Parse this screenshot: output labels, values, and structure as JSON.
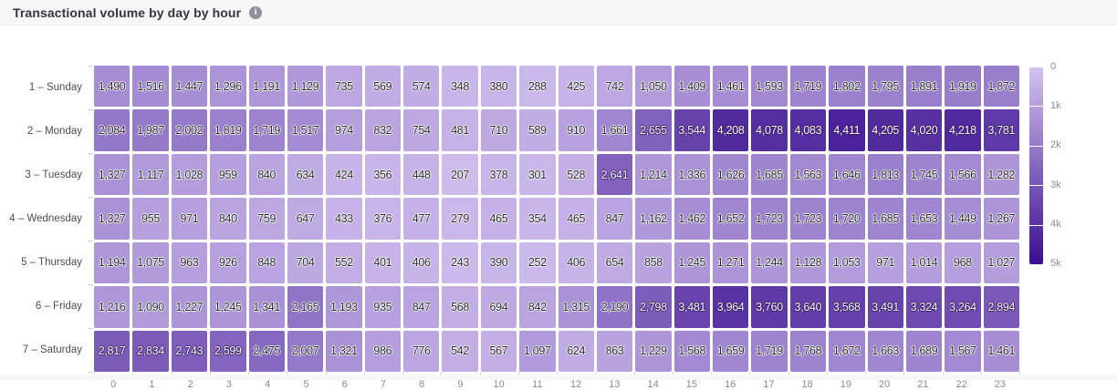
{
  "header": {
    "title": "Transactional volume by day by hour"
  },
  "chart_data": {
    "type": "heatmap",
    "title": "Transactional volume by day by hour",
    "categories_x": [
      "0",
      "1",
      "2",
      "3",
      "4",
      "5",
      "6",
      "7",
      "8",
      "9",
      "10",
      "11",
      "12",
      "13",
      "14",
      "15",
      "16",
      "17",
      "18",
      "19",
      "20",
      "21",
      "22",
      "23"
    ],
    "series": [
      {
        "name": "1 – Sunday",
        "values": [
          1490,
          1516,
          1447,
          1296,
          1191,
          1129,
          735,
          569,
          574,
          348,
          380,
          288,
          425,
          742,
          1050,
          1409,
          1461,
          1593,
          1719,
          1802,
          1795,
          1891,
          1919,
          1872
        ]
      },
      {
        "name": "2 – Monday",
        "values": [
          2084,
          1987,
          2002,
          1819,
          1719,
          1517,
          974,
          832,
          754,
          481,
          710,
          589,
          910,
          1661,
          2655,
          3544,
          4208,
          4078,
          4083,
          4411,
          4205,
          4020,
          4218,
          3781
        ]
      },
      {
        "name": "3 – Tuesday",
        "values": [
          1327,
          1117,
          1028,
          959,
          840,
          634,
          424,
          356,
          448,
          207,
          378,
          301,
          528,
          2641,
          1214,
          1336,
          1626,
          1685,
          1563,
          1646,
          1813,
          1745,
          1566,
          1282
        ]
      },
      {
        "name": "4 – Wednesday",
        "values": [
          1327,
          955,
          971,
          840,
          759,
          647,
          433,
          376,
          477,
          279,
          465,
          354,
          465,
          847,
          1162,
          1462,
          1652,
          1723,
          1723,
          1720,
          1685,
          1653,
          1449,
          1267
        ]
      },
      {
        "name": "5 – Thursday",
        "values": [
          1194,
          1075,
          963,
          926,
          848,
          704,
          552,
          401,
          406,
          243,
          390,
          252,
          406,
          654,
          858,
          1245,
          1271,
          1244,
          1128,
          1053,
          971,
          1014,
          968,
          1027
        ]
      },
      {
        "name": "6 – Friday",
        "values": [
          1216,
          1090,
          1227,
          1245,
          1341,
          2165,
          1193,
          935,
          847,
          568,
          694,
          842,
          1315,
          2190,
          2798,
          3481,
          3964,
          3760,
          3640,
          3568,
          3491,
          3324,
          3264,
          2894
        ]
      },
      {
        "name": "7 – Saturday",
        "values": [
          2817,
          2834,
          2743,
          2599,
          2475,
          2007,
          1321,
          986,
          776,
          542,
          567,
          1097,
          624,
          863,
          1229,
          1568,
          1659,
          1719,
          1768,
          1672,
          1663,
          1689,
          1567,
          1461
        ]
      }
    ],
    "color_scale": {
      "min": 0,
      "max": 5000,
      "min_color": "#d3c2f0",
      "max_color": "#390d8f"
    },
    "legend": {
      "position": "right",
      "tick_labels": [
        "0",
        "1k",
        "2k",
        "3k",
        "4k",
        "5k"
      ]
    },
    "grid": "off"
  }
}
